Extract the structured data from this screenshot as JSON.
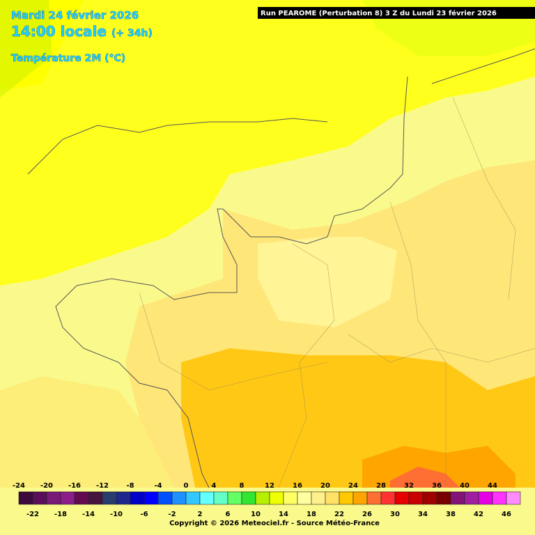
{
  "header": {
    "date": "Mardi 24 février 2026",
    "time": "14:00 locale",
    "lead": "(+ 34h)",
    "field": "Température 2M (°C)",
    "run": "Run PEAROME (Perturbation 8) 3 Z du Lundi 23 février 2026"
  },
  "legend": {
    "labels": [
      -24,
      -22,
      -20,
      -18,
      -16,
      -14,
      -12,
      -10,
      -8,
      -6,
      -4,
      -2,
      0,
      2,
      4,
      6,
      8,
      10,
      12,
      14,
      16,
      18,
      20,
      22,
      24,
      26,
      28,
      30,
      32,
      34,
      36,
      38,
      40,
      42,
      44,
      46
    ],
    "colors": [
      "#3c0a3c",
      "#5a0f5a",
      "#781a78",
      "#8c1e8c",
      "#640a50",
      "#46143c",
      "#283c6e",
      "#1e288c",
      "#0000c8",
      "#0000ff",
      "#0050ff",
      "#1e90ff",
      "#32c8ff",
      "#64ffff",
      "#64ffc8",
      "#64ff64",
      "#32e632",
      "#b4f000",
      "#f0ff00",
      "#ffff64",
      "#ffffa0",
      "#fff08c",
      "#ffe164",
      "#ffc800",
      "#ffa500",
      "#ff6e32",
      "#ff3232",
      "#e60000",
      "#c80000",
      "#a00000",
      "#780000",
      "#821478",
      "#a01ea0",
      "#e600e6",
      "#ff32ff",
      "#ff8cff"
    ]
  },
  "footer": {
    "copyright": "Copyright © 2026 Meteociel.fr - Source Météo-France"
  }
}
